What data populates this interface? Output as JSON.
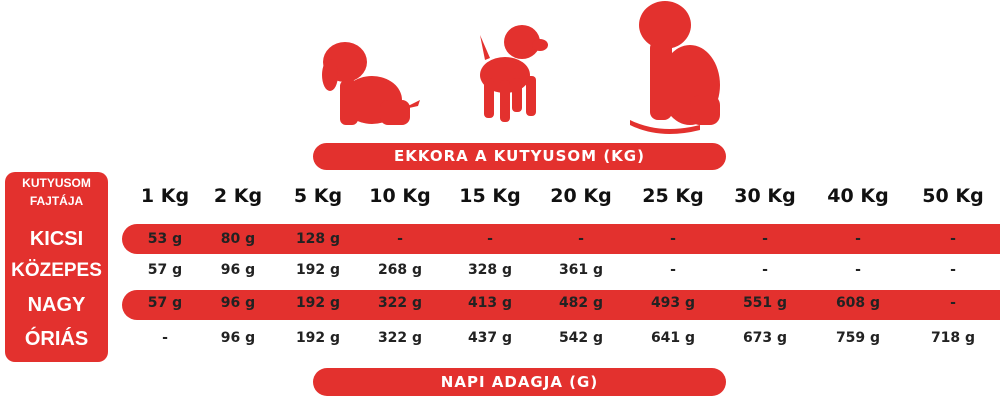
{
  "title": "EKKORA A KUTYUSOM (KG)",
  "footer": "NAPI ADAGJA (G)",
  "accent": "#e3312e",
  "icons": [
    "puppy-sitting-icon",
    "puppy-standing-icon",
    "dog-sitting-icon"
  ],
  "corner_label": [
    "KUTYUSOM",
    "FAJTÁJA"
  ],
  "columns": [
    "1 Kg",
    "2 Kg",
    "5 Kg",
    "10 Kg",
    "15 Kg",
    "20 Kg",
    "25 Kg",
    "30 Kg",
    "40 Kg",
    "50 Kg"
  ],
  "rows": [
    {
      "label": "KICSI",
      "values": [
        "53 g",
        "80 g",
        "128 g",
        "-",
        "-",
        "-",
        "-",
        "-",
        "-",
        "-"
      ]
    },
    {
      "label": "KÖZEPES",
      "values": [
        "57 g",
        "96 g",
        "192 g",
        "268 g",
        "328 g",
        "361 g",
        "-",
        "-",
        "-",
        "-"
      ]
    },
    {
      "label": "NAGY",
      "values": [
        "57 g",
        "96 g",
        "192 g",
        "322 g",
        "413 g",
        "482 g",
        "493 g",
        "551 g",
        "608 g",
        "-"
      ]
    },
    {
      "label": "ÓRIÁS",
      "values": [
        "-",
        "96 g",
        "192 g",
        "322 g",
        "437 g",
        "542 g",
        "641 g",
        "673 g",
        "759 g",
        "718 g"
      ]
    }
  ]
}
